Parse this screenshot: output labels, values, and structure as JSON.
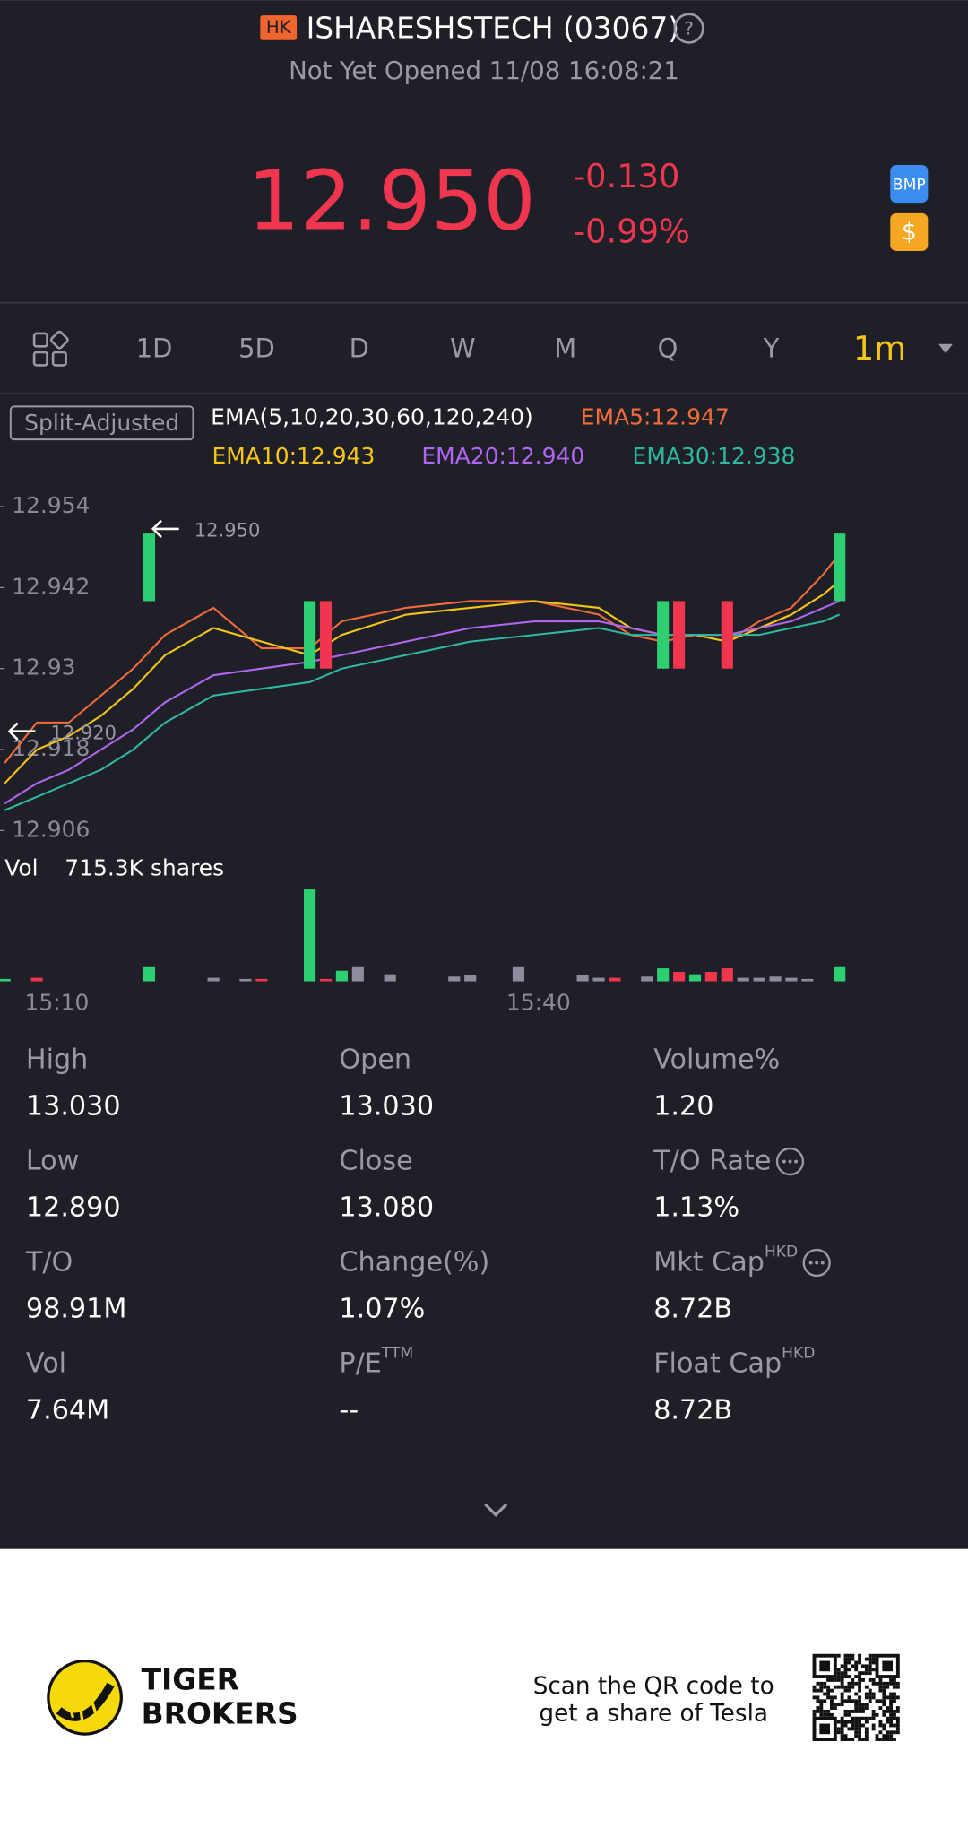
{
  "header": {
    "badge": "HK",
    "title": "ISHARESHSTECH (03067)",
    "status": "Not Yet Opened 11/08 16:08:21"
  },
  "quote": {
    "price": "12.950",
    "change": "-0.130",
    "change_pct": "-0.99%",
    "icons": [
      "BMP",
      "$"
    ]
  },
  "tabs": [
    "1D",
    "5D",
    "D",
    "W",
    "M",
    "Q",
    "Y",
    "1m"
  ],
  "indicator": {
    "adjust": "Split-Adjusted",
    "ema_label": "EMA(5,10,20,30,60,120,240)"
  },
  "chart_data": [
    {
      "type": "candlestick",
      "x": [
        "15:07",
        "15:09",
        "15:11",
        "15:13",
        "15:15",
        "15:17",
        "15:20",
        "15:23",
        "15:26",
        "15:28",
        "15:32",
        "15:36",
        "15:40",
        "15:44",
        "15:46",
        "15:48",
        "15:50",
        "15:52",
        "15:54",
        "15:56",
        "15:58",
        "15:59"
      ],
      "xlim": [
        "15:07",
        "16:07"
      ],
      "ylim": [
        12.906,
        12.954
      ],
      "yticks": [
        12.954,
        12.942,
        12.93,
        12.918,
        12.906
      ],
      "candles": {
        "x": [
          "15:16",
          "15:26",
          "15:27",
          "15:48",
          "15:49",
          "15:52",
          "15:59"
        ],
        "open": [
          12.94,
          12.93,
          12.94,
          12.93,
          12.94,
          12.94,
          12.94
        ],
        "close": [
          12.95,
          12.94,
          12.93,
          12.94,
          12.93,
          12.93,
          12.95
        ],
        "high": [
          12.95,
          12.94,
          12.94,
          12.94,
          12.94,
          12.94,
          12.95
        ],
        "low": [
          12.94,
          12.93,
          12.93,
          12.93,
          12.93,
          12.93,
          12.94
        ],
        "up_color": "#2ecf72",
        "down_color": "#f0354f"
      },
      "series": [
        {
          "name": "EMA5:12.947",
          "color": "#f26b3a",
          "values": [
            12.916,
            12.922,
            12.922,
            12.926,
            12.93,
            12.935,
            12.939,
            12.933,
            12.933,
            12.937,
            12.939,
            12.94,
            12.94,
            12.938,
            12.935,
            12.934,
            12.935,
            12.934,
            12.937,
            12.939,
            12.944,
            12.947
          ]
        },
        {
          "name": "EMA10:12.943",
          "color": "#f5c518",
          "values": [
            12.913,
            12.918,
            12.92,
            12.923,
            12.927,
            12.932,
            12.936,
            12.934,
            12.932,
            12.935,
            12.938,
            12.939,
            12.94,
            12.939,
            12.936,
            12.935,
            12.935,
            12.934,
            12.936,
            12.938,
            12.941,
            12.943
          ]
        },
        {
          "name": "EMA20:12.940",
          "color": "#b066f0",
          "values": [
            12.91,
            12.913,
            12.915,
            12.918,
            12.921,
            12.925,
            12.929,
            12.93,
            12.931,
            12.932,
            12.934,
            12.936,
            12.937,
            12.937,
            12.936,
            12.935,
            12.935,
            12.935,
            12.936,
            12.937,
            12.939,
            12.94
          ]
        },
        {
          "name": "EMA30:12.938",
          "color": "#2eb8a0",
          "values": [
            12.909,
            12.911,
            12.913,
            12.915,
            12.918,
            12.922,
            12.926,
            12.927,
            12.928,
            12.93,
            12.932,
            12.934,
            12.935,
            12.936,
            12.935,
            12.935,
            12.935,
            12.935,
            12.935,
            12.936,
            12.937,
            12.938
          ]
        }
      ],
      "annotations": [
        {
          "value": 12.95,
          "label": "12.950"
        },
        {
          "value": 12.92,
          "label": "12.920"
        }
      ]
    },
    {
      "type": "bar",
      "title": "Vol",
      "subtitle": "715.3K shares",
      "x": [
        "15:07",
        "15:09",
        "15:16",
        "15:20",
        "15:22",
        "15:23",
        "15:26",
        "15:27",
        "15:28",
        "15:29",
        "15:31",
        "15:35",
        "15:36",
        "15:39",
        "15:43",
        "15:44",
        "15:45",
        "15:47",
        "15:48",
        "15:49",
        "15:50",
        "15:51",
        "15:52",
        "15:53",
        "15:54",
        "15:55",
        "15:56",
        "15:57",
        "15:59"
      ],
      "xlim": [
        "15:07",
        "16:07"
      ],
      "values": [
        2000,
        3000,
        12000,
        3000,
        2000,
        2000,
        78000,
        2000,
        9000,
        12000,
        6000,
        4000,
        5000,
        12000,
        5000,
        3000,
        3000,
        4000,
        11000,
        8000,
        6000,
        8000,
        11000,
        3000,
        3000,
        4000,
        3000,
        2000,
        12000
      ],
      "colors": [
        "#2ecf72",
        "#f0354f",
        "#2ecf72",
        "#8c8c9e",
        "#8c8c9e",
        "#f0354f",
        "#2ecf72",
        "#f0354f",
        "#2ecf72",
        "#8c8c9e",
        "#8c8c9e",
        "#8c8c9e",
        "#8c8c9e",
        "#8c8c9e",
        "#8c8c9e",
        "#8c8c9e",
        "#f0354f",
        "#8c8c9e",
        "#2ecf72",
        "#f0354f",
        "#2ecf72",
        "#f0354f",
        "#f0354f",
        "#8c8c9e",
        "#8c8c9e",
        "#8c8c9e",
        "#8c8c9e",
        "#8c8c9e",
        "#2ecf72"
      ],
      "ylim": [
        0,
        80000
      ],
      "xticks": [
        "15:10",
        "15:40"
      ]
    }
  ],
  "stats": [
    {
      "label": "High",
      "value": "13.030"
    },
    {
      "label": "Open",
      "value": "13.030"
    },
    {
      "label": "Volume%",
      "value": "1.20"
    },
    {
      "label": "Low",
      "value": "12.890"
    },
    {
      "label": "Close",
      "value": "13.080"
    },
    {
      "label": "T/O Rate",
      "value": "1.13%",
      "info": true
    },
    {
      "label": "T/O",
      "value": "98.91M"
    },
    {
      "label": "Change(%)",
      "value": "1.07%"
    },
    {
      "label": "Mkt Cap",
      "sup": "HKD",
      "value": "8.72B",
      "info": true
    },
    {
      "label": "Vol",
      "value": "7.64M"
    },
    {
      "label": "P/E",
      "sup": "TTM",
      "value": "--"
    },
    {
      "label": "Float Cap",
      "sup": "HKD",
      "value": "8.72B"
    }
  ],
  "footer": {
    "brand": [
      "TIGER",
      "BROKERS"
    ],
    "promo": [
      "Scan the QR code to",
      "get a share of Tesla"
    ]
  }
}
